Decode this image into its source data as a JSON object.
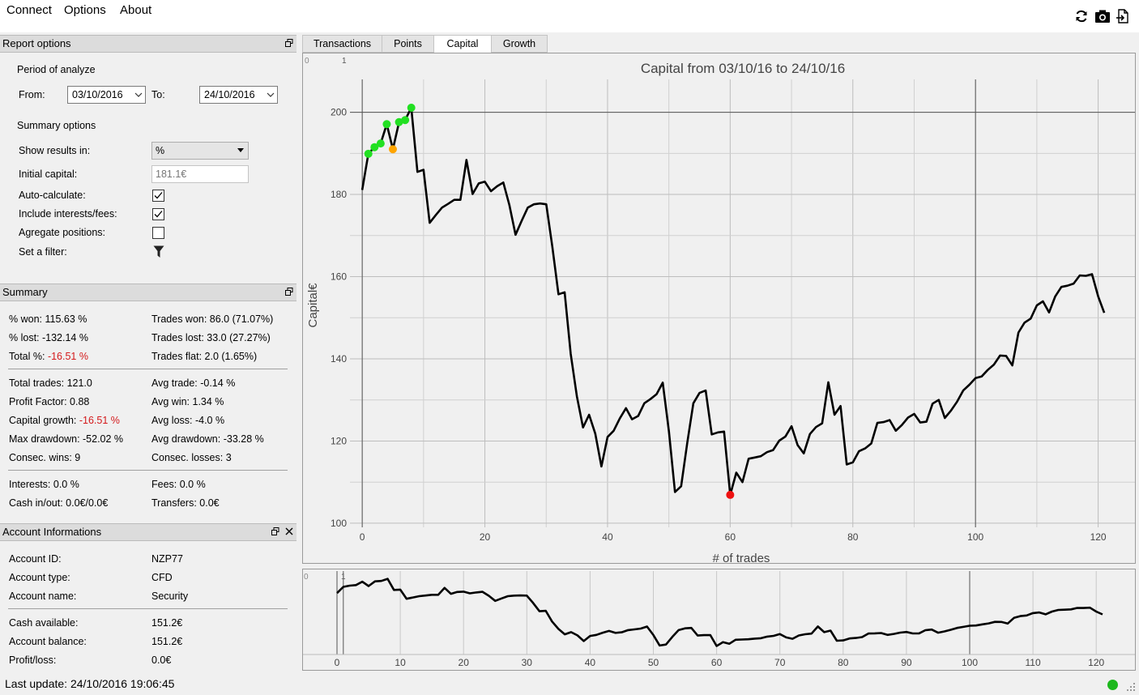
{
  "menu": {
    "connect": "Connect",
    "options": "Options",
    "about": "About"
  },
  "toolbar": {
    "icons": [
      "refresh-icon",
      "camera-icon",
      "export-icon"
    ]
  },
  "report_options": {
    "title": "Report options",
    "period_label": "Period of analyze",
    "from_label": "From:",
    "from_value": "03/10/2016",
    "to_label": "To:",
    "to_value": "24/10/2016",
    "summary_options_label": "Summary options",
    "show_results_label": "Show results in:",
    "show_results_value": "%",
    "initial_capital_label": "Initial capital:",
    "initial_capital_value": "181.1€",
    "auto_calc_label": "Auto-calculate:",
    "auto_calc_checked": true,
    "include_interests_label": "Include interests/fees:",
    "include_interests_checked": true,
    "aggregate_label": "Agregate positions:",
    "aggregate_checked": false,
    "filter_label": "Set a filter:"
  },
  "summary": {
    "title": "Summary",
    "won_pct": "% won: 115.63 %",
    "trades_won": "Trades won: 86.0 (71.07%)",
    "lost_pct": "% lost: -132.14 %",
    "trades_lost": "Trades lost: 33.0 (27.27%)",
    "total_label": "Total %: ",
    "total_value": "-16.51 %",
    "trades_flat": "Trades flat: 2.0 (1.65%)",
    "total_trades": "Total trades: 121.0",
    "avg_trade": "Avg trade: -0.14 %",
    "profit_factor": "Profit Factor: 0.88",
    "avg_win": "Avg win: 1.34 %",
    "capital_growth_label": "Capital growth: ",
    "capital_growth_value": "-16.51 %",
    "avg_loss": "Avg loss: -4.0 %",
    "max_drawdown": "Max drawdown: -52.02 %",
    "avg_drawdown": "Avg drawdown: -33.28 %",
    "consec_wins": "Consec. wins: 9",
    "consec_losses": "Consec. losses: 3",
    "interests": "Interests: 0.0 %",
    "fees": "Fees: 0.0 %",
    "cash_inout": "Cash in/out: 0.0€/0.0€",
    "transfers": "Transfers: 0.0€"
  },
  "account": {
    "title": "Account Informations",
    "id_label": "Account ID:",
    "id_value": "NZP77",
    "type_label": "Account type:",
    "type_value": "CFD",
    "name_label": "Account name:",
    "name_value": "Security",
    "cash_label": "Cash available:",
    "cash_value": "151.2€",
    "balance_label": "Account balance:",
    "balance_value": "151.2€",
    "pl_label": "Profit/loss:",
    "pl_value": "0.0€"
  },
  "tabs": [
    {
      "label": "Transactions",
      "active": false
    },
    {
      "label": "Points",
      "active": false
    },
    {
      "label": "Capital",
      "active": true
    },
    {
      "label": "Growth",
      "active": false
    }
  ],
  "status": {
    "last_update": "Last update: 24/10/2016 19:06:45",
    "connection_color": "#1db81d"
  },
  "chart_data": {
    "type": "line",
    "title": "Capital from 03/10/16 to 24/10/16",
    "xlabel": "# of trades",
    "ylabel": "Capital€",
    "xlim": [
      -2,
      126
    ],
    "ylim": [
      99,
      208
    ],
    "x_ticks": [
      0,
      20,
      40,
      60,
      80,
      100,
      120
    ],
    "y_ticks": [
      100,
      120,
      140,
      160,
      180,
      200
    ],
    "corner_labels": [
      "0",
      "1"
    ],
    "line_color": "#000000",
    "marker_colors": {
      "high": "#22e022",
      "dip": "#ffa500",
      "low": "#ee1111"
    },
    "y": [
      181.1,
      189.9,
      191.5,
      192.4,
      197.1,
      191,
      197.6,
      198.1,
      201.1,
      185.5,
      186,
      173.1,
      175,
      176.8,
      177.7,
      178.7,
      178.7,
      188.4,
      180.1,
      182.7,
      183.1,
      180.8,
      182,
      182.9,
      177.4,
      170.2,
      173.6,
      176.8,
      177.6,
      177.8,
      177.6,
      167.3,
      155.7,
      156.2,
      141.2,
      130.9,
      123.3,
      126.4,
      121.8,
      113.8,
      121,
      122.5,
      125.5,
      128,
      125.3,
      126.1,
      129.2,
      130.2,
      131.4,
      134.2,
      122.4,
      107.6,
      109,
      119.6,
      129.2,
      131.7,
      132.3,
      121.6,
      122.1,
      122.3,
      106.9,
      112.3,
      110,
      115.7,
      116,
      116.3,
      117.3,
      117.8,
      120.1,
      121.1,
      123.6,
      119,
      117,
      121.7,
      123.4,
      124.3,
      134.3,
      126.4,
      128.5,
      114.3,
      114.8,
      117.5,
      118.2,
      119.4,
      124.4,
      124.6,
      125.1,
      122.5,
      123.9,
      125.7,
      126.6,
      124.5,
      124.7,
      129.1,
      130,
      125.6,
      127.4,
      129.6,
      132.3,
      133.7,
      135.3,
      135.7,
      137.3,
      138.6,
      140.8,
      140.7,
      138.4,
      146.4,
      148.8,
      149.8,
      153,
      154,
      151.3,
      155.2,
      157.5,
      157.8,
      158.3,
      160.3,
      160.2,
      160.6,
      155.2,
      151.2
    ],
    "high_markers": [
      1,
      2,
      3,
      4,
      6,
      7,
      8
    ],
    "dip_marker": 5,
    "low_marker": 60,
    "overview": {
      "xlim": [
        -2,
        128
      ],
      "ylim": [
        95,
        212
      ],
      "x_ticks": [
        0,
        10,
        20,
        30,
        40,
        50,
        60,
        70,
        80,
        90,
        100,
        110,
        120
      ],
      "corner_labels": [
        "0",
        "1"
      ]
    }
  }
}
